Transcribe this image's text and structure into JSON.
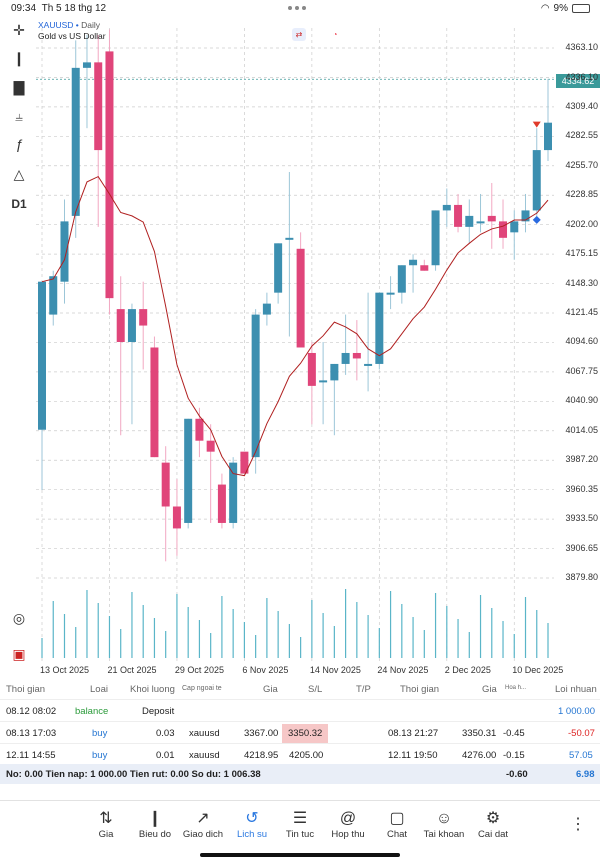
{
  "status": {
    "time": "09:34",
    "date": "Th 5 18 thg 12",
    "battery": "9%"
  },
  "chart": {
    "symbol": "XAUUSD",
    "timeframe_tag": "Daily",
    "description": "Gold vs US Dollar",
    "timeframe": "D1",
    "current_price": "4334.62",
    "price_ticks": [
      "4363.10",
      "4336.10",
      "4309.40",
      "4282.55",
      "4255.70",
      "4228.85",
      "4202.00",
      "4175.15",
      "4148.30",
      "4121.45",
      "4094.60",
      "4067.75",
      "4040.90",
      "4014.05",
      "3987.20",
      "3960.35",
      "3933.50",
      "3906.65",
      "3879.80"
    ],
    "date_labels": [
      "13 Oct 2025",
      "21 Oct 2025",
      "29 Oct 2025",
      "6 Nov 2025",
      "14 Nov 2025",
      "24 Nov 2025",
      "2 Dec 2025",
      "10 Dec 2025"
    ],
    "up_color": "#3c8fb0",
    "down_color": "#e0457a",
    "ma_color": "#b02020"
  },
  "chart_data": {
    "type": "candlestick",
    "price_range": [
      3879.8,
      4363.1
    ],
    "candles": [
      {
        "o": 4015,
        "h": 4150,
        "l": 3960,
        "c": 4150
      },
      {
        "o": 4120,
        "h": 4160,
        "l": 4110,
        "c": 4155
      },
      {
        "o": 4150,
        "h": 4225,
        "l": 4130,
        "c": 4205
      },
      {
        "o": 4210,
        "h": 4370,
        "l": 4190,
        "c": 4345
      },
      {
        "o": 4345,
        "h": 4375,
        "l": 4290,
        "c": 4350
      },
      {
        "o": 4350,
        "h": 4375,
        "l": 4200,
        "c": 4270
      },
      {
        "o": 4360,
        "h": 4380,
        "l": 4120,
        "c": 4135
      },
      {
        "o": 4125,
        "h": 4155,
        "l": 4010,
        "c": 4095
      },
      {
        "o": 4095,
        "h": 4130,
        "l": 4020,
        "c": 4125
      },
      {
        "o": 4125,
        "h": 4150,
        "l": 4070,
        "c": 4110
      },
      {
        "o": 4090,
        "h": 4100,
        "l": 3990,
        "c": 3990
      },
      {
        "o": 3985,
        "h": 4000,
        "l": 3895,
        "c": 3945
      },
      {
        "o": 3945,
        "h": 3970,
        "l": 3900,
        "c": 3925
      },
      {
        "o": 3930,
        "h": 4025,
        "l": 3925,
        "c": 4025
      },
      {
        "o": 4025,
        "h": 4035,
        "l": 3990,
        "c": 4005
      },
      {
        "o": 4005,
        "h": 4020,
        "l": 3930,
        "c": 3995
      },
      {
        "o": 3965,
        "h": 3975,
        "l": 3925,
        "c": 3930
      },
      {
        "o": 3930,
        "h": 3990,
        "l": 3925,
        "c": 3985
      },
      {
        "o": 3995,
        "h": 3995,
        "l": 3975,
        "c": 3975
      },
      {
        "o": 3990,
        "h": 4125,
        "l": 3975,
        "c": 4120
      },
      {
        "o": 4120,
        "h": 4140,
        "l": 4110,
        "c": 4130
      },
      {
        "o": 4140,
        "h": 4185,
        "l": 4130,
        "c": 4185
      },
      {
        "o": 4190,
        "h": 4250,
        "l": 4100,
        "c": 4190
      },
      {
        "o": 4180,
        "h": 4195,
        "l": 4090,
        "c": 4090
      },
      {
        "o": 4085,
        "h": 4095,
        "l": 4020,
        "c": 4055
      },
      {
        "o": 4060,
        "h": 4095,
        "l": 4020,
        "c": 4060
      },
      {
        "o": 4060,
        "h": 4075,
        "l": 4010,
        "c": 4075
      },
      {
        "o": 4075,
        "h": 4120,
        "l": 4065,
        "c": 4085
      },
      {
        "o": 4085,
        "h": 4115,
        "l": 4060,
        "c": 4080
      },
      {
        "o": 4075,
        "h": 4140,
        "l": 4050,
        "c": 4075
      },
      {
        "o": 4075,
        "h": 4140,
        "l": 4070,
        "c": 4140
      },
      {
        "o": 4140,
        "h": 4155,
        "l": 4125,
        "c": 4140
      },
      {
        "o": 4140,
        "h": 4165,
        "l": 4130,
        "c": 4165
      },
      {
        "o": 4165,
        "h": 4175,
        "l": 4140,
        "c": 4170
      },
      {
        "o": 4165,
        "h": 4170,
        "l": 4160,
        "c": 4160
      },
      {
        "o": 4165,
        "h": 4215,
        "l": 4160,
        "c": 4215
      },
      {
        "o": 4215,
        "h": 4235,
        "l": 4200,
        "c": 4220
      },
      {
        "o": 4220,
        "h": 4230,
        "l": 4195,
        "c": 4200
      },
      {
        "o": 4200,
        "h": 4225,
        "l": 4185,
        "c": 4210
      },
      {
        "o": 4205,
        "h": 4230,
        "l": 4195,
        "c": 4205
      },
      {
        "o": 4210,
        "h": 4240,
        "l": 4180,
        "c": 4205
      },
      {
        "o": 4205,
        "h": 4225,
        "l": 4180,
        "c": 4190
      },
      {
        "o": 4195,
        "h": 4215,
        "l": 4170,
        "c": 4205
      },
      {
        "o": 4205,
        "h": 4230,
        "l": 4195,
        "c": 4215
      },
      {
        "o": 4215,
        "h": 4290,
        "l": 4210,
        "c": 4270
      },
      {
        "o": 4270,
        "h": 4335,
        "l": 4260,
        "c": 4295
      }
    ],
    "ma_label": "moving average"
  },
  "toolbar": {
    "icons": [
      "crosshair-icon",
      "candles-icon",
      "indicators-icon",
      "bars-settings-icon",
      "function-icon",
      "objects-icon",
      "timeframe-label"
    ]
  },
  "table": {
    "headers": [
      "Thoi gian",
      "Loai",
      "Khoi luong",
      "Cap ngoai te",
      "Gia",
      "S/L",
      "T/P",
      "Thoi gian",
      "Gia",
      "Hoa h...",
      "Loi nhuan"
    ],
    "rows": [
      {
        "time": "08.12 08:02",
        "type": "balance",
        "vol": "",
        "sym": "Deposit",
        "price": "",
        "sl": "",
        "tp": "",
        "time2": "",
        "price2": "",
        "comm": "",
        "profit": "1 000.00"
      },
      {
        "time": "08.13 17:03",
        "type": "buy",
        "vol": "0.03",
        "sym": "xauusd",
        "price": "3367.00",
        "sl": "3350.32",
        "tp": "",
        "time2": "08.13 21:27",
        "price2": "3350.31",
        "comm": "-0.45",
        "profit": "-50.07"
      },
      {
        "time": "12.11 14:55",
        "type": "buy",
        "vol": "0.01",
        "sym": "xauusd",
        "price": "4218.95",
        "sl": "4205.00",
        "tp": "",
        "time2": "12.11 19:50",
        "price2": "4276.00",
        "comm": "-0.15",
        "profit": "57.05"
      }
    ],
    "summary": {
      "text": "No: 0.00 Tien nap: 1 000.00 Tien rut: 0.00 So du: 1 006.38",
      "comm": "-0.60",
      "profit": "6.98"
    }
  },
  "tabs": [
    {
      "label": "Gia",
      "icon": "price-icon"
    },
    {
      "label": "Bieu do",
      "icon": "chart-icon"
    },
    {
      "label": "Giao dich",
      "icon": "trade-icon"
    },
    {
      "label": "Lich su",
      "icon": "history-icon"
    },
    {
      "label": "Tin tuc",
      "icon": "news-icon"
    },
    {
      "label": "Hop thu",
      "icon": "mail-icon"
    },
    {
      "label": "Chat",
      "icon": "chat-icon"
    },
    {
      "label": "Tai khoan",
      "icon": "account-icon"
    },
    {
      "label": "Cai dat",
      "icon": "settings-icon"
    }
  ]
}
